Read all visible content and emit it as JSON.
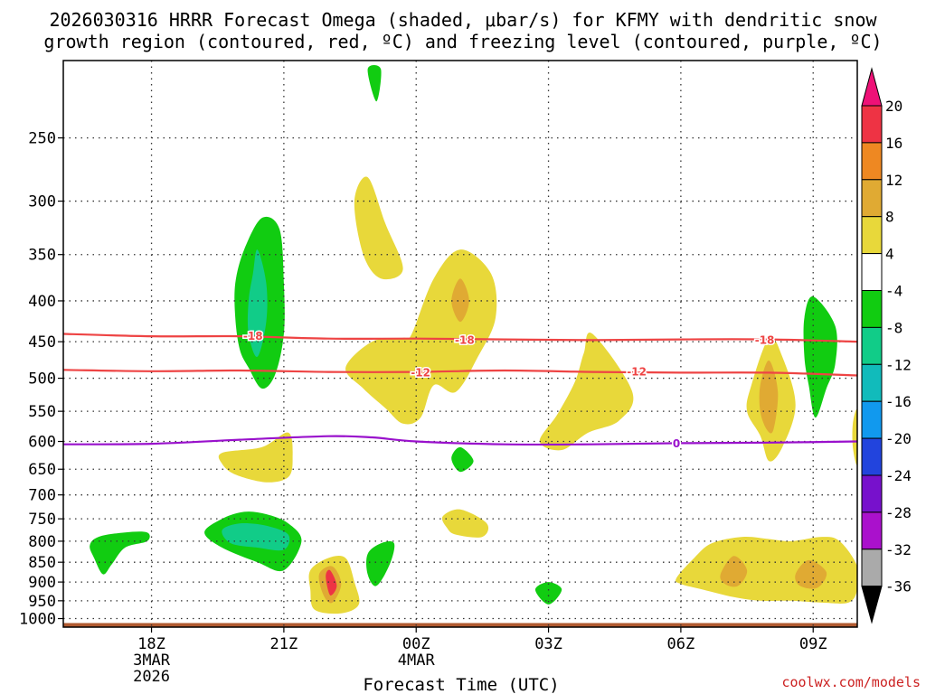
{
  "chart_data": {
    "type": "heatmap",
    "title_line1": "2026030316 HRRR Forecast Omega (shaded, μbar/s) for KFMY with dendritic snow",
    "title_line2": "growth region (contoured, red, ºC) and freezing level (contoured, purple, ºC)",
    "xlabel": "Forecast Time (UTC)",
    "credit": "coolwx.com/models",
    "x_range_hours": [
      16,
      34
    ],
    "x_ticks": [
      {
        "hour": 18,
        "label": "18Z",
        "sub1": "3MAR",
        "sub2": "2026"
      },
      {
        "hour": 21,
        "label": "21Z",
        "sub1": "",
        "sub2": ""
      },
      {
        "hour": 24,
        "label": "00Z",
        "sub1": "4MAR",
        "sub2": ""
      },
      {
        "hour": 27,
        "label": "03Z",
        "sub1": "",
        "sub2": ""
      },
      {
        "hour": 30,
        "label": "06Z",
        "sub1": "",
        "sub2": ""
      },
      {
        "hour": 33,
        "label": "09Z",
        "sub1": "",
        "sub2": ""
      }
    ],
    "y_scale": "log-pressure",
    "y_range_hpa": [
      1025,
      200
    ],
    "y_ticks": [
      250,
      300,
      350,
      400,
      450,
      500,
      550,
      600,
      650,
      700,
      750,
      800,
      850,
      900,
      950,
      1000
    ],
    "colorbar": {
      "labels": [
        "20",
        "16",
        "12",
        "8",
        "4",
        "-4",
        "-8",
        "-12",
        "-16",
        "-20",
        "-24",
        "-28",
        "-32",
        "-36"
      ],
      "colors": [
        "#ee3344",
        "#ee8822",
        "#e0aa33",
        "#e8d83a",
        "#ffffff",
        "#11cc11",
        "#11cc88",
        "#11bbbb",
        "#1199ee",
        "#2244dd",
        "#7711cc",
        "#aa11cc",
        "#aaaaaa"
      ],
      "top_arrow_color": "#ee1177",
      "bottom_arrow_color": "#000000"
    },
    "omega_regions": [
      {
        "name": "green-250",
        "color": "#11cc11",
        "pts": [
          [
            22.9,
            205
          ],
          [
            23.2,
            205
          ],
          [
            23.1,
            225
          ]
        ]
      },
      {
        "name": "yellow-300",
        "color": "#e8d83a",
        "pts": [
          [
            22.6,
            300
          ],
          [
            22.9,
            280
          ],
          [
            23.3,
            320
          ],
          [
            23.7,
            365
          ],
          [
            23.2,
            375
          ],
          [
            22.8,
            350
          ]
        ]
      },
      {
        "name": "green-400",
        "color": "#11cc11",
        "pts": [
          [
            19.9,
            420
          ],
          [
            19.9,
            380
          ],
          [
            20.1,
            345
          ],
          [
            20.5,
            315
          ],
          [
            20.9,
            325
          ],
          [
            21.0,
            380
          ],
          [
            21.0,
            440
          ],
          [
            20.8,
            495
          ],
          [
            20.5,
            515
          ],
          [
            20.2,
            485
          ],
          [
            20.0,
            460
          ]
        ]
      },
      {
        "name": "teal-400",
        "color": "#11cc88",
        "pts": [
          [
            20.2,
            400
          ],
          [
            20.3,
            370
          ],
          [
            20.4,
            345
          ],
          [
            20.6,
            380
          ],
          [
            20.6,
            425
          ],
          [
            20.4,
            470
          ],
          [
            20.2,
            440
          ]
        ]
      },
      {
        "name": "yellow-center-upper",
        "color": "#e8d83a",
        "pts": [
          [
            23.9,
            440
          ],
          [
            24.4,
            375
          ],
          [
            25.0,
            345
          ],
          [
            25.7,
            370
          ],
          [
            25.8,
            420
          ],
          [
            25.4,
            470
          ],
          [
            24.9,
            520
          ],
          [
            24.4,
            510
          ],
          [
            24.1,
            560
          ],
          [
            23.7,
            570
          ],
          [
            23.3,
            545
          ],
          [
            22.8,
            515
          ],
          [
            22.4,
            485
          ],
          [
            23.0,
            450
          ],
          [
            23.7,
            445
          ]
        ]
      },
      {
        "name": "orange-center-upper",
        "color": "#e0aa33",
        "pts": [
          [
            24.8,
            400
          ],
          [
            25.0,
            375
          ],
          [
            25.2,
            400
          ],
          [
            25.0,
            425
          ]
        ]
      },
      {
        "name": "yellow-center-right",
        "color": "#e8d83a",
        "pts": [
          [
            27.8,
            465
          ],
          [
            28.0,
            440
          ],
          [
            28.9,
            520
          ],
          [
            28.6,
            565
          ],
          [
            27.9,
            585
          ],
          [
            27.3,
            615
          ],
          [
            26.8,
            600
          ],
          [
            27.2,
            555
          ],
          [
            27.6,
            505
          ]
        ]
      },
      {
        "name": "yellow-right",
        "color": "#e8d83a",
        "pts": [
          [
            31.6,
            510
          ],
          [
            32.0,
            445
          ],
          [
            32.3,
            470
          ],
          [
            32.6,
            540
          ],
          [
            32.3,
            610
          ],
          [
            32.0,
            635
          ],
          [
            31.8,
            590
          ],
          [
            31.5,
            550
          ]
        ]
      },
      {
        "name": "orange-right",
        "color": "#e0aa33",
        "pts": [
          [
            31.8,
            510
          ],
          [
            32.0,
            475
          ],
          [
            32.2,
            520
          ],
          [
            32.1,
            580
          ],
          [
            31.95,
            580
          ],
          [
            31.8,
            550
          ]
        ]
      },
      {
        "name": "green-right-upper",
        "color": "#11cc11",
        "pts": [
          [
            32.8,
            420
          ],
          [
            33.0,
            395
          ],
          [
            33.5,
            430
          ],
          [
            33.5,
            480
          ],
          [
            33.3,
            515
          ],
          [
            33.05,
            560
          ],
          [
            32.9,
            510
          ],
          [
            32.8,
            470
          ]
        ]
      },
      {
        "name": "yellow-edge-right",
        "color": "#e8d83a",
        "pts": [
          [
            33.9,
            570
          ],
          [
            34.0,
            550
          ],
          [
            34.0,
            640
          ],
          [
            33.9,
            610
          ]
        ]
      },
      {
        "name": "yellow-650",
        "color": "#e8d83a",
        "pts": [
          [
            19.6,
            620
          ],
          [
            20.5,
            610
          ],
          [
            21.1,
            585
          ],
          [
            21.2,
            630
          ],
          [
            21.1,
            665
          ],
          [
            20.6,
            675
          ],
          [
            19.9,
            660
          ],
          [
            19.6,
            640
          ]
        ]
      },
      {
        "name": "green-630",
        "color": "#11cc11",
        "pts": [
          [
            24.8,
            630
          ],
          [
            25.0,
            610
          ],
          [
            25.3,
            635
          ],
          [
            25.0,
            655
          ]
        ]
      },
      {
        "name": "yellow-750",
        "color": "#e8d83a",
        "pts": [
          [
            24.6,
            745
          ],
          [
            25.0,
            730
          ],
          [
            25.6,
            760
          ],
          [
            25.5,
            790
          ],
          [
            24.9,
            785
          ],
          [
            24.7,
            770
          ]
        ]
      },
      {
        "name": "green-800-left",
        "color": "#11cc11",
        "pts": [
          [
            16.6,
            810
          ],
          [
            16.8,
            790
          ],
          [
            17.4,
            780
          ],
          [
            17.9,
            780
          ],
          [
            17.9,
            800
          ],
          [
            17.4,
            815
          ],
          [
            17.1,
            855
          ],
          [
            16.9,
            880
          ],
          [
            16.7,
            840
          ]
        ]
      },
      {
        "name": "green-800-mid",
        "color": "#11cc11",
        "pts": [
          [
            19.2,
            780
          ],
          [
            19.6,
            750
          ],
          [
            20.1,
            735
          ],
          [
            20.6,
            740
          ],
          [
            21.1,
            760
          ],
          [
            21.4,
            800
          ],
          [
            21.0,
            870
          ],
          [
            20.4,
            850
          ],
          [
            19.6,
            815
          ]
        ]
      },
      {
        "name": "teal-800",
        "color": "#11cc88",
        "pts": [
          [
            19.6,
            775
          ],
          [
            20.0,
            760
          ],
          [
            20.6,
            765
          ],
          [
            21.1,
            785
          ],
          [
            21.0,
            820
          ],
          [
            20.4,
            815
          ],
          [
            19.8,
            805
          ]
        ]
      },
      {
        "name": "yellow-900",
        "color": "#e8d83a",
        "pts": [
          [
            21.6,
            870
          ],
          [
            22.0,
            840
          ],
          [
            22.4,
            840
          ],
          [
            22.6,
            900
          ],
          [
            22.7,
            960
          ],
          [
            22.3,
            985
          ],
          [
            21.7,
            975
          ],
          [
            21.6,
            920
          ]
        ]
      },
      {
        "name": "orange-900",
        "color": "#e0aa33",
        "pts": [
          [
            21.8,
            880
          ],
          [
            22.1,
            860
          ],
          [
            22.3,
            905
          ],
          [
            22.1,
            955
          ],
          [
            21.9,
            935
          ]
        ]
      },
      {
        "name": "red-900",
        "color": "#ee3344",
        "pts": [
          [
            21.95,
            885
          ],
          [
            22.05,
            870
          ],
          [
            22.2,
            910
          ],
          [
            22.05,
            935
          ]
        ]
      },
      {
        "name": "green-850",
        "color": "#11cc11",
        "pts": [
          [
            22.9,
            830
          ],
          [
            23.2,
            805
          ],
          [
            23.5,
            805
          ],
          [
            23.4,
            855
          ],
          [
            23.1,
            910
          ],
          [
            22.9,
            880
          ]
        ]
      },
      {
        "name": "green-920",
        "color": "#11cc11",
        "pts": [
          [
            26.7,
            920
          ],
          [
            27.0,
            900
          ],
          [
            27.3,
            920
          ],
          [
            27.0,
            960
          ]
        ]
      },
      {
        "name": "yellow-900-right",
        "color": "#e8d83a",
        "pts": [
          [
            29.9,
            890
          ],
          [
            30.3,
            840
          ],
          [
            30.7,
            805
          ],
          [
            31.4,
            790
          ],
          [
            32.0,
            795
          ],
          [
            32.5,
            800
          ],
          [
            33.2,
            790
          ],
          [
            33.6,
            800
          ],
          [
            34.0,
            860
          ],
          [
            34.0,
            920
          ],
          [
            33.8,
            955
          ],
          [
            33.2,
            955
          ],
          [
            32.5,
            950
          ],
          [
            31.8,
            950
          ],
          [
            31.2,
            940
          ],
          [
            30.5,
            920
          ],
          [
            30.0,
            905
          ]
        ]
      },
      {
        "name": "orange-880-a",
        "color": "#e0aa33",
        "pts": [
          [
            30.9,
            880
          ],
          [
            31.2,
            835
          ],
          [
            31.5,
            870
          ],
          [
            31.3,
            910
          ],
          [
            31.0,
            905
          ]
        ]
      },
      {
        "name": "orange-880-b",
        "color": "#e0aa33",
        "pts": [
          [
            32.6,
            880
          ],
          [
            32.9,
            845
          ],
          [
            33.3,
            875
          ],
          [
            33.1,
            915
          ],
          [
            32.7,
            910
          ]
        ]
      }
    ],
    "contours": [
      {
        "label": "-18",
        "color": "#ee4444",
        "label_hour": 20.3,
        "label_hpa": 443,
        "pts": [
          [
            16,
            440
          ],
          [
            18,
            443
          ],
          [
            20,
            443
          ],
          [
            22,
            446
          ],
          [
            24,
            446
          ],
          [
            26,
            447
          ],
          [
            28,
            448
          ],
          [
            30,
            447
          ],
          [
            32,
            447
          ],
          [
            34,
            450
          ]
        ],
        "labels": [
          [
            20.3,
            443
          ],
          [
            25.1,
            448
          ],
          [
            31.9,
            448
          ]
        ]
      },
      {
        "label": "-12",
        "color": "#ee4444",
        "pts": [
          [
            16,
            488
          ],
          [
            18,
            490
          ],
          [
            20,
            489
          ],
          [
            22,
            491
          ],
          [
            24,
            491
          ],
          [
            26,
            489
          ],
          [
            28,
            491
          ],
          [
            30,
            492
          ],
          [
            32,
            492
          ],
          [
            34,
            496
          ]
        ],
        "labels": [
          [
            24.1,
            492
          ],
          [
            29.0,
            491
          ]
        ]
      },
      {
        "label": "0",
        "color": "#9911cc",
        "pts": [
          [
            16,
            605
          ],
          [
            18,
            604
          ],
          [
            20,
            597
          ],
          [
            22,
            591
          ],
          [
            23,
            593
          ],
          [
            24,
            600
          ],
          [
            26,
            605
          ],
          [
            28,
            605
          ],
          [
            30,
            603
          ],
          [
            32,
            602
          ],
          [
            34,
            600
          ]
        ],
        "labels": [
          [
            29.9,
            604
          ]
        ]
      }
    ],
    "ground_band_hpa": [
      1013,
      1025
    ],
    "ground_color": "#b05a30"
  }
}
